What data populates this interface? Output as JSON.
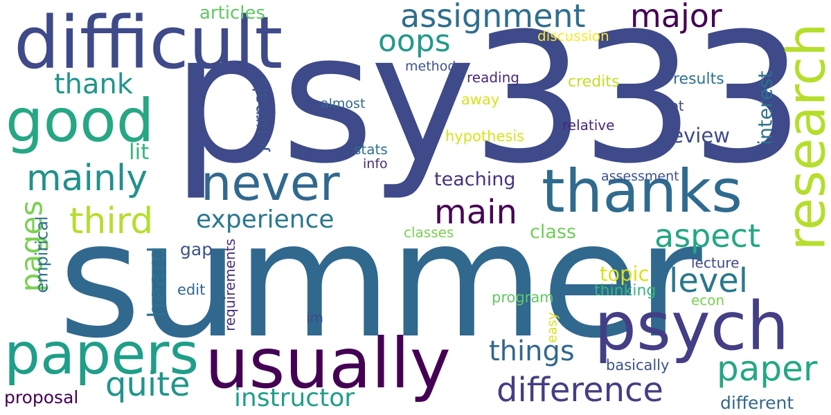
{
  "words": {
    "psy333": {
      "text": "psy333",
      "color": "#3e4a89"
    },
    "summer": {
      "text": "summer",
      "color": "#31688e"
    },
    "difficult": {
      "text": "difficult",
      "color": "#3e4a89"
    },
    "research": {
      "text": "research",
      "color": "#b5de2b"
    },
    "thanks": {
      "text": "thanks",
      "color": "#2f6b8e"
    },
    "never": {
      "text": "never",
      "color": "#31688e"
    },
    "good": {
      "text": "good",
      "color": "#26a784"
    },
    "psych": {
      "text": "psych",
      "color": "#433e85"
    },
    "usually": {
      "text": "usually",
      "color": "#440154"
    },
    "papers": {
      "text": "papers",
      "color": "#1f9e89"
    },
    "assignment": {
      "text": "assignment",
      "color": "#2e6e8e"
    },
    "major": {
      "text": "major",
      "color": "#440154"
    },
    "oops": {
      "text": "oops",
      "color": "#1f9a8a"
    },
    "articles": {
      "text": "articles",
      "color": "#5ec962"
    },
    "discussion": {
      "text": "discussion",
      "color": "#fde725"
    },
    "method": {
      "text": "method",
      "color": "#3b528b"
    },
    "reading": {
      "text": "reading",
      "color": "#482878"
    },
    "thank": {
      "text": "thank",
      "color": "#1f968b"
    },
    "almost": {
      "text": "almost",
      "color": "#31688e"
    },
    "credits": {
      "text": "credits",
      "color": "#c2df23"
    },
    "away": {
      "text": "away",
      "color": "#d8e219"
    },
    "results": {
      "text": "results",
      "color": "#2c728e"
    },
    "interest": {
      "text": "interest",
      "color": "#2c728e"
    },
    "lot": {
      "text": "lot",
      "color": "#3e4a89"
    },
    "relative": {
      "text": "relative",
      "color": "#482878"
    },
    "hypothesis": {
      "text": "hypothesis",
      "color": "#d8e219"
    },
    "review": {
      "text": "review",
      "color": "#3e4a89"
    },
    "journals": {
      "text": "journals",
      "color": "#3b528b"
    },
    "lit": {
      "text": "lit",
      "color": "#35b779"
    },
    "stats": {
      "text": "stats",
      "color": "#2c728e"
    },
    "info": {
      "text": "info",
      "color": "#472d7b"
    },
    "mainly": {
      "text": "mainly",
      "color": "#21918c"
    },
    "teaching": {
      "text": "teaching",
      "color": "#46327e"
    },
    "assessment": {
      "text": "assessment",
      "color": "#3b528b"
    },
    "third": {
      "text": "third",
      "color": "#b5de2b"
    },
    "main": {
      "text": "main",
      "color": "#440154"
    },
    "pages": {
      "text": "pages",
      "color": "#7ad151"
    },
    "experience": {
      "text": "experience",
      "color": "#2a788e"
    },
    "empirical": {
      "text": "empirical",
      "color": "#2c728e"
    },
    "heard": {
      "text": "heard",
      "color": "#2c728e"
    },
    "gap": {
      "text": "gap",
      "color": "#3b528b"
    },
    "requirements": {
      "text": "requirements",
      "color": "#472d7b"
    },
    "aspect": {
      "text": "aspect",
      "color": "#22a884"
    },
    "classes": {
      "text": "classes",
      "color": "#7ad151"
    },
    "class": {
      "text": "class",
      "color": "#6ece58"
    },
    "level": {
      "text": "level",
      "color": "#2a788e"
    },
    "lecture": {
      "text": "lecture",
      "color": "#3e4a89"
    },
    "topic": {
      "text": "topic",
      "color": "#d8e219"
    },
    "thinking": {
      "text": "thinking",
      "color": "#35b779"
    },
    "edit": {
      "text": "edit",
      "color": "#31688e"
    },
    "im": {
      "text": "im",
      "color": "#3e4a89"
    },
    "program": {
      "text": "program",
      "color": "#5ec962"
    },
    "econ": {
      "text": "econ",
      "color": "#7ad151"
    },
    "easy": {
      "text": "easy",
      "color": "#d8e219"
    },
    "things": {
      "text": "things",
      "color": "#31688e"
    },
    "basically": {
      "text": "basically",
      "color": "#3b528b"
    },
    "paper": {
      "text": "paper",
      "color": "#22a884"
    },
    "quite": {
      "text": "quite",
      "color": "#1f968b"
    },
    "difference": {
      "text": "difference",
      "color": "#433e85"
    },
    "instructor": {
      "text": "instructor",
      "color": "#1f9e89"
    },
    "proposal": {
      "text": "proposal",
      "color": "#440154"
    },
    "different": {
      "text": "different",
      "color": "#31688e"
    }
  }
}
